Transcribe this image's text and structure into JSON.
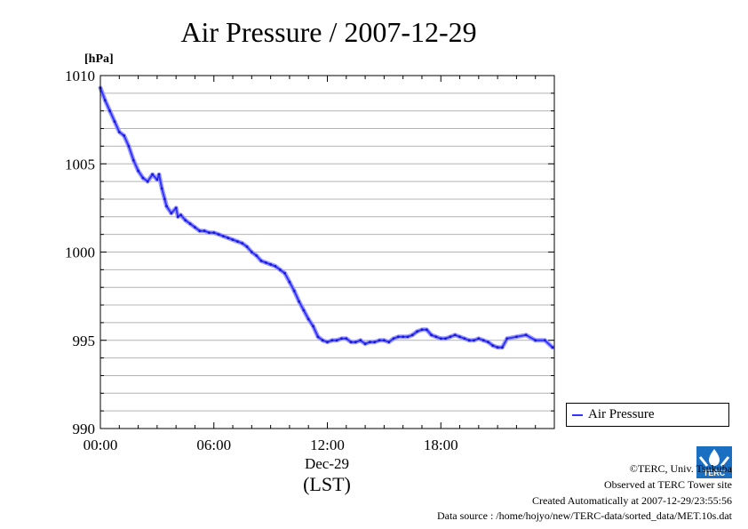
{
  "chart_data": {
    "type": "line",
    "title": "Air Pressure / 2007-12-29",
    "ylabel": "[hPa]",
    "ylim": [
      990,
      1010
    ],
    "yticks": [
      990,
      995,
      1000,
      1005,
      1010
    ],
    "ytick_labels": [
      "990",
      "995",
      "1000",
      "1005",
      "1010"
    ],
    "xlim": [
      0,
      24
    ],
    "xticks": [
      0,
      6,
      12,
      18
    ],
    "xtick_labels": [
      "00:00",
      "06:00",
      "12:00",
      "18:00"
    ],
    "xlabel_date": "Dec-29",
    "xlabel_unit": "(LST)",
    "grid": true,
    "legend_position": "right",
    "series": [
      {
        "name": "Air Pressure",
        "color": "#3333ff",
        "x": [
          0,
          0.25,
          0.5,
          0.75,
          1,
          1.25,
          1.5,
          1.75,
          2,
          2.25,
          2.5,
          2.75,
          3,
          3.1,
          3.25,
          3.4,
          3.5,
          3.75,
          4,
          4.1,
          4.25,
          4.5,
          4.75,
          5,
          5.25,
          5.5,
          5.75,
          6,
          6.25,
          6.5,
          6.75,
          7,
          7.25,
          7.5,
          7.75,
          8,
          8.25,
          8.5,
          8.75,
          9,
          9.25,
          9.5,
          9.75,
          10,
          10.25,
          10.5,
          10.75,
          11,
          11.25,
          11.5,
          11.75,
          12,
          12.25,
          12.5,
          12.75,
          13,
          13.25,
          13.5,
          13.75,
          14,
          14.25,
          14.5,
          14.75,
          15,
          15.25,
          15.5,
          15.75,
          16,
          16.25,
          16.5,
          16.75,
          17,
          17.25,
          17.5,
          17.75,
          18,
          18.25,
          18.5,
          18.75,
          19,
          19.25,
          19.5,
          19.75,
          20,
          20.25,
          20.5,
          20.75,
          21,
          21.25,
          21.5,
          21.75,
          22,
          22.25,
          22.5,
          22.75,
          23,
          23.25,
          23.5,
          23.75
        ],
        "y": [
          1009.3,
          1008.6,
          1008.0,
          1007.4,
          1006.8,
          1006.6,
          1006.0,
          1005.2,
          1004.6,
          1004.2,
          1004.0,
          1004.4,
          1004.1,
          1004.4,
          1003.6,
          1003.0,
          1002.6,
          1002.2,
          1002.5,
          1002.0,
          1002.1,
          1001.8,
          1001.6,
          1001.4,
          1001.2,
          1001.2,
          1001.1,
          1001.1,
          1001.0,
          1000.9,
          1000.8,
          1000.7,
          1000.6,
          1000.5,
          1000.3,
          1000.0,
          999.8,
          999.5,
          999.4,
          999.3,
          999.2,
          999.0,
          998.8,
          998.3,
          997.8,
          997.2,
          996.7,
          996.2,
          995.8,
          995.2,
          995.0,
          994.9,
          995.0,
          995.0,
          995.1,
          995.1,
          994.9,
          994.9,
          995.0,
          994.8,
          994.9,
          994.9,
          995.0,
          995.0,
          994.9,
          995.1,
          995.2,
          995.2,
          995.2,
          995.3,
          995.5,
          995.6,
          995.6,
          995.3,
          995.2,
          995.1,
          995.1,
          995.2,
          995.3,
          995.2,
          995.1,
          995.0,
          995.0,
          995.1,
          995.0,
          994.9,
          994.7,
          994.6,
          994.6,
          994.6,
          994.7,
          994.8,
          994.9,
          995.0,
          995.0,
          995.2,
          995.3,
          995.2,
          995.2
        ],
        "x_end": [
          21.5,
          22,
          22.5,
          23,
          23.5,
          23.9
        ],
        "y_end": [
          995.1,
          995.2,
          995.3,
          995.0,
          995.0,
          994.6
        ]
      }
    ]
  },
  "footer": {
    "copyright": "©TERC, Univ. Tsukuba",
    "observed": "Observed at TERC Tower site",
    "created": "Created Automatically at 2007-12-29/23:55:56",
    "source": "Data source : /home/hojyo/new/TERC-data/sorted_data/MET.10s.dat"
  },
  "logo": {
    "text": "TERC",
    "color": "#1a6fc2"
  }
}
